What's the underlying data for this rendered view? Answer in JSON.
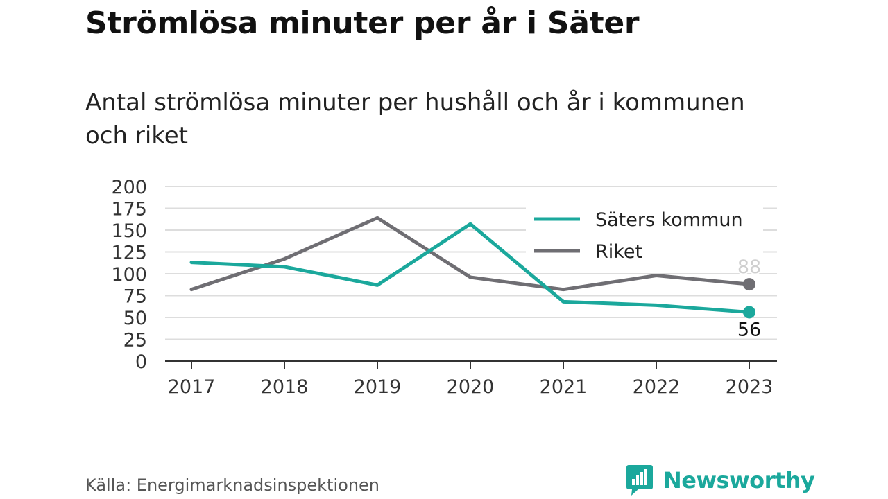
{
  "header": {
    "title": "Strömlösa minuter per år i Säter",
    "subtitle": "Antal strömlösa minuter per hushåll och år i kommunen och riket"
  },
  "footer": {
    "source": "Källa: Energimarknadsinspektionen",
    "brand": "Newsworthy"
  },
  "colors": {
    "kommun": "#1ba89c",
    "riket": "#6f6e73",
    "grid": "#dddddd",
    "axis": "#333333"
  },
  "chart_data": {
    "type": "line",
    "categories": [
      "2017",
      "2018",
      "2019",
      "2020",
      "2021",
      "2022",
      "2023"
    ],
    "series": [
      {
        "name": "Säters kommun",
        "values": [
          113,
          108,
          87,
          157,
          68,
          64,
          56
        ]
      },
      {
        "name": "Riket",
        "values": [
          82,
          117,
          164,
          96,
          82,
          98,
          88
        ]
      }
    ],
    "yticks": [
      "0",
      "25",
      "50",
      "75",
      "100",
      "125",
      "150",
      "175",
      "200"
    ],
    "ylim": [
      0,
      200
    ],
    "grid": true,
    "legend_position": "top-right",
    "end_labels": {
      "riket": "88",
      "kommun": "56"
    }
  }
}
